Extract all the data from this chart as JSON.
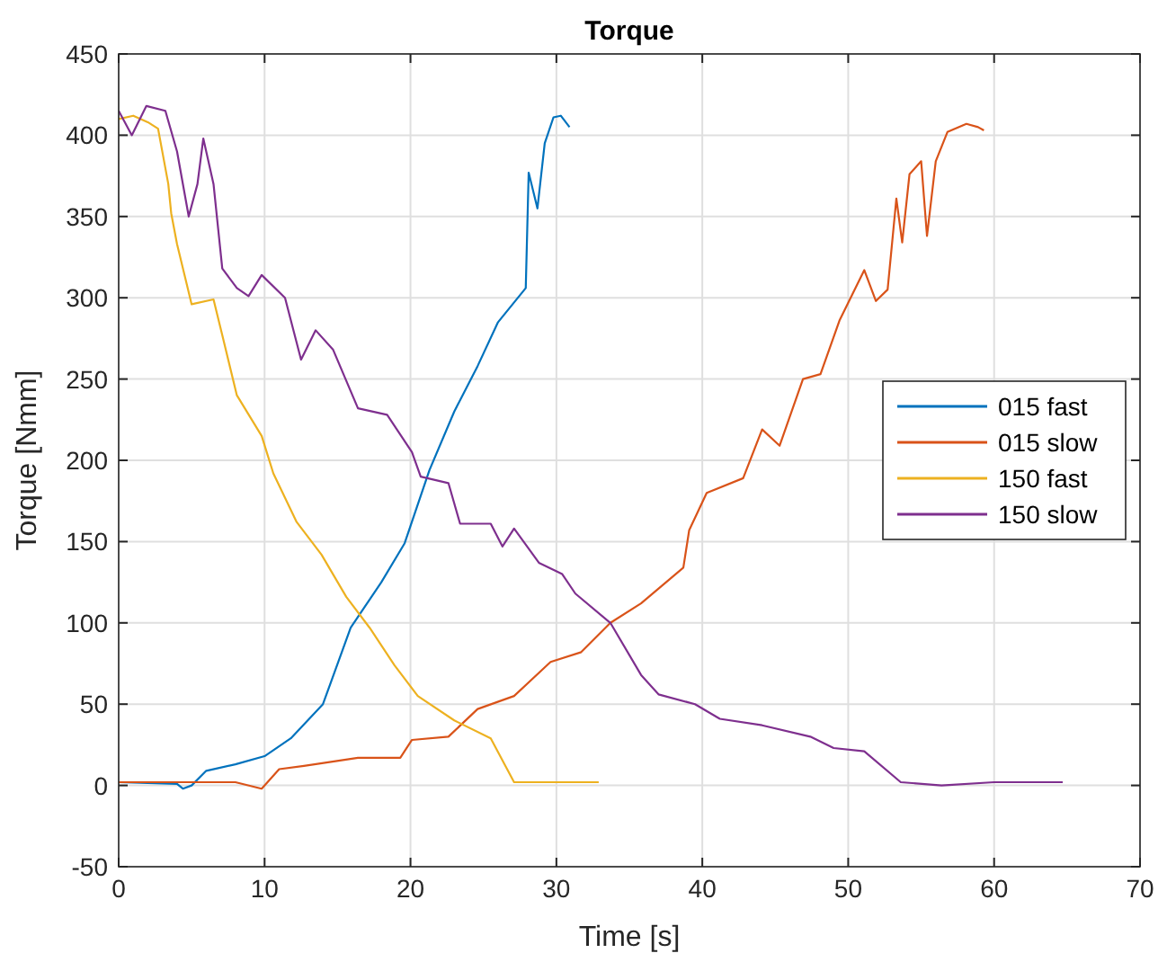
{
  "chart_data": {
    "type": "line",
    "title": "Torque",
    "xlabel": "Time [s]",
    "ylabel": "Torque [Nmm]",
    "xlim": [
      0,
      70
    ],
    "xticks": [
      0,
      10,
      20,
      30,
      40,
      50,
      60,
      70
    ],
    "ylim": [
      -50,
      450
    ],
    "yticks": [
      -50,
      0,
      50,
      100,
      150,
      200,
      250,
      300,
      350,
      400,
      450
    ],
    "grid": true,
    "legend": "right",
    "line_style": "solid",
    "marker": "none",
    "series": [
      {
        "name": "015 fast",
        "color": "#0072bd",
        "x": [
          0,
          4,
          4.4,
          5,
          6,
          8,
          10,
          11.8,
          14,
          15.9,
          18,
          19.6,
          21.3,
          23,
          24.6,
          26,
          27.9,
          28.1,
          28.7,
          29.2,
          29.8,
          30.3,
          30.9
        ],
        "values": [
          2,
          1,
          -2,
          0,
          9,
          13,
          18,
          29,
          50,
          97,
          125,
          149,
          194,
          230,
          258,
          285,
          306,
          377,
          355,
          395,
          411,
          412,
          405
        ]
      },
      {
        "name": "015 slow",
        "color": "#d95319",
        "x": [
          0,
          4,
          8,
          9.8,
          11,
          12.7,
          16.4,
          19.3,
          20.1,
          22.6,
          24.6,
          27.1,
          29.6,
          31.7,
          33.7,
          35.8,
          38.7,
          39.1,
          40.3,
          42.8,
          44.1,
          45.3,
          46.9,
          48.1,
          49.4,
          51.1,
          51.9,
          52.7,
          53.3,
          53.7,
          54.2,
          55,
          55.4,
          56,
          56.8,
          58.1,
          58.9,
          59.3
        ],
        "values": [
          2,
          2,
          2,
          -2,
          10,
          12,
          17,
          17,
          28,
          30,
          47,
          55,
          76,
          82,
          100,
          112,
          134,
          157,
          180,
          189,
          219,
          209,
          250,
          253,
          286,
          317,
          298,
          305,
          361,
          334,
          376,
          384,
          338,
          384,
          402,
          407,
          405,
          403
        ]
      },
      {
        "name": "150 fast",
        "color": "#edb120",
        "x": [
          0,
          1,
          2,
          2.7,
          3.4,
          3.6,
          4,
          5,
          6.5,
          7.1,
          8.1,
          9.8,
          10.6,
          12.2,
          13.9,
          15.6,
          17.2,
          18.9,
          20.5,
          23,
          25.5,
          27.1,
          30,
          32.9
        ],
        "values": [
          410,
          412,
          408,
          404,
          370,
          352,
          333,
          296,
          299,
          277,
          240,
          215,
          192,
          162,
          142,
          116,
          97,
          74,
          55,
          40,
          29,
          2,
          2,
          2
        ]
      },
      {
        "name": "150 slow",
        "color": "#7e2f8e",
        "x": [
          0,
          0.9,
          1.9,
          3.2,
          4,
          4.8,
          5.4,
          5.8,
          6.5,
          7.1,
          8.1,
          8.9,
          9.8,
          11.4,
          12.5,
          13.5,
          14.7,
          16.4,
          18.4,
          20.1,
          20.7,
          22.6,
          23.4,
          25.5,
          26.3,
          27.1,
          28.8,
          30.4,
          31.3,
          33.7,
          35.8,
          37,
          39.5,
          41.2,
          44.1,
          47.4,
          49,
          51.1,
          53.6,
          56.4,
          60,
          64.7
        ],
        "values": [
          415,
          400,
          418,
          415,
          390,
          350,
          370,
          398,
          370,
          318,
          306,
          301,
          314,
          300,
          262,
          280,
          268,
          232,
          228,
          205,
          190,
          186,
          161,
          161,
          147,
          158,
          137,
          130,
          118,
          100,
          68,
          56,
          50,
          41,
          37,
          30,
          23,
          21,
          2,
          0,
          2,
          2
        ]
      }
    ]
  }
}
